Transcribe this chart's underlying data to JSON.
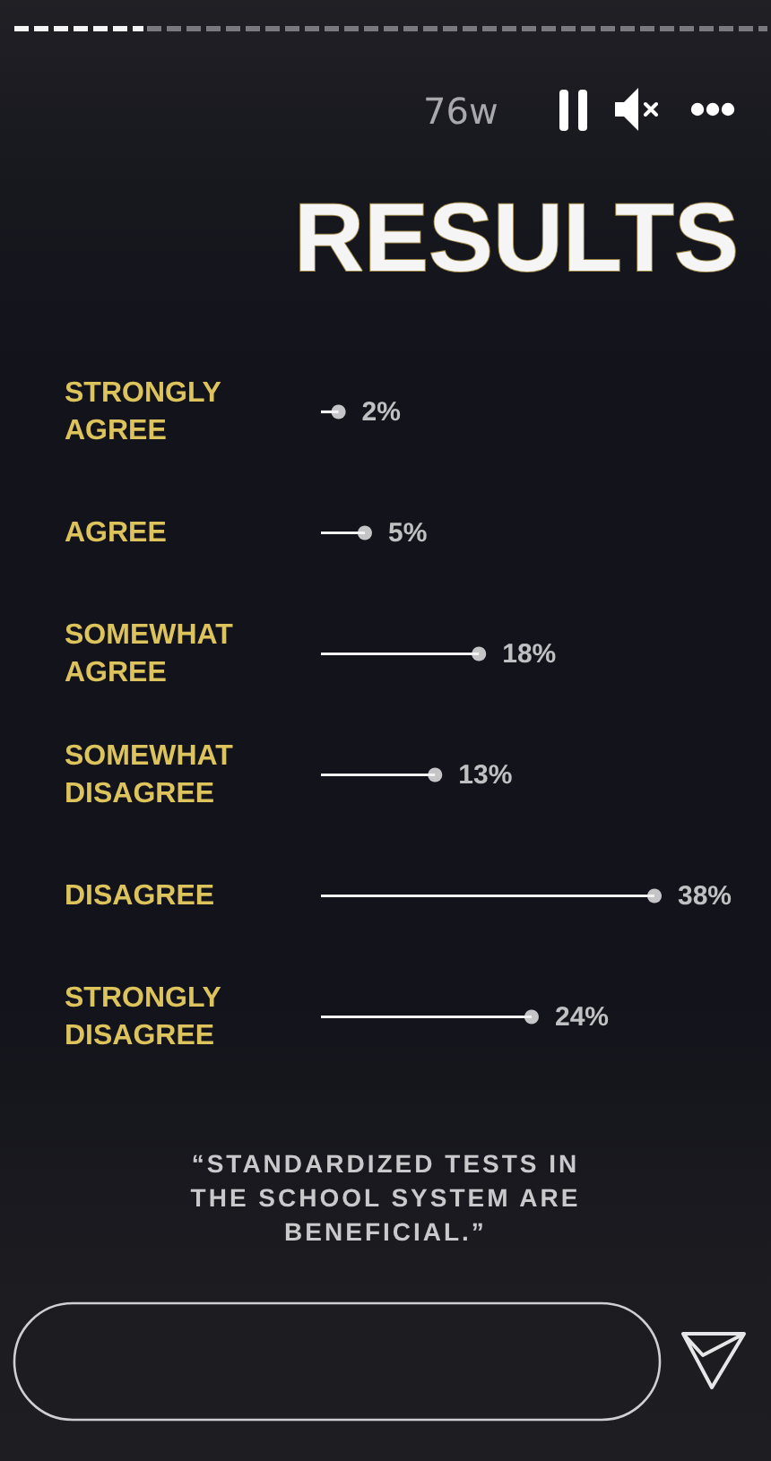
{
  "chart_data": {
    "type": "lollipop",
    "orientation": "horizontal",
    "title": "RESULTS",
    "categories": [
      "STRONGLY AGREE",
      "AGREE",
      "SOMEWHAT AGREE",
      "SOMEWHAT DISAGREE",
      "DISAGREE",
      "STRONGLY DISAGREE"
    ],
    "values": [
      2,
      5,
      18,
      13,
      38,
      24
    ],
    "value_labels": [
      "2%",
      "5%",
      "18%",
      "13%",
      "38%",
      "24%"
    ],
    "color": "#f2f2f2",
    "marker": "circle",
    "tick_labels": "y",
    "annotations": [
      "76w",
      "“STANDARDIZED TESTS IN THE SCHOOL SYSTEM ARE BENEFICIAL.”"
    ]
  }
}
